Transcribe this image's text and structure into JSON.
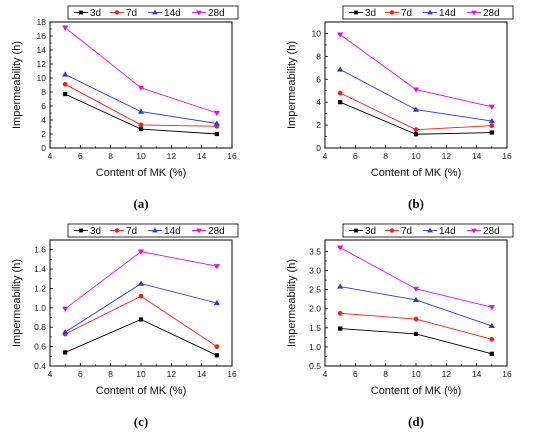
{
  "chart_data": [
    {
      "type": "line",
      "caption": "(a)",
      "xlabel": "Content of MK (%)",
      "ylabel": "Impermeability (h)",
      "xlim": [
        4,
        16
      ],
      "ylim": [
        0,
        18
      ],
      "xticks": [
        "4",
        "6",
        "8",
        "10",
        "12",
        "14",
        "16"
      ],
      "yticks": [
        "0",
        "2",
        "4",
        "6",
        "8",
        "10",
        "12",
        "14",
        "16",
        "18"
      ],
      "x": [
        5,
        10,
        15
      ],
      "legend_position": "top",
      "series": [
        {
          "name": "3d",
          "color": "#000000",
          "marker": "square",
          "values": [
            7.7,
            2.7,
            2.0
          ]
        },
        {
          "name": "7d",
          "color": "#e8251a",
          "marker": "circle",
          "values": [
            9.1,
            3.3,
            3.1
          ]
        },
        {
          "name": "14d",
          "color": "#2b3bd8",
          "marker": "triangle-up",
          "values": [
            10.5,
            5.2,
            3.5
          ]
        },
        {
          "name": "28d",
          "color": "#e010e0",
          "marker": "triangle-down",
          "values": [
            17.2,
            8.6,
            5.0
          ]
        }
      ]
    },
    {
      "type": "line",
      "caption": "(b)",
      "xlabel": "Content of MK (%)",
      "ylabel": "Impermeability (h)",
      "xlim": [
        4,
        16
      ],
      "ylim": [
        0,
        11
      ],
      "xticks": [
        "4",
        "6",
        "8",
        "10",
        "12",
        "14",
        "16"
      ],
      "yticks": [
        "0",
        "2",
        "4",
        "6",
        "8",
        "10"
      ],
      "x": [
        5,
        10,
        15
      ],
      "legend_position": "top",
      "series": [
        {
          "name": "3d",
          "color": "#000000",
          "marker": "square",
          "values": [
            4.0,
            1.2,
            1.35
          ]
        },
        {
          "name": "7d",
          "color": "#e8251a",
          "marker": "circle",
          "values": [
            4.8,
            1.6,
            1.95
          ]
        },
        {
          "name": "14d",
          "color": "#2b3bd8",
          "marker": "triangle-up",
          "values": [
            6.85,
            3.35,
            2.35
          ]
        },
        {
          "name": "28d",
          "color": "#e010e0",
          "marker": "triangle-down",
          "values": [
            9.9,
            5.1,
            3.6
          ]
        }
      ]
    },
    {
      "type": "line",
      "caption": "(c)",
      "xlabel": "Content of MK (%)",
      "ylabel": "Impermeability (h)",
      "xlim": [
        4,
        16
      ],
      "ylim": [
        0.4,
        1.7
      ],
      "xticks": [
        "4",
        "6",
        "8",
        "10",
        "12",
        "14",
        "16"
      ],
      "yticks": [
        "0.4",
        "0.6",
        "0.8",
        "1.0",
        "1.2",
        "1.4",
        "1.6"
      ],
      "x": [
        5,
        10,
        15
      ],
      "legend_position": "top",
      "series": [
        {
          "name": "3d",
          "color": "#000000",
          "marker": "square",
          "values": [
            0.54,
            0.88,
            0.51
          ]
        },
        {
          "name": "7d",
          "color": "#e8251a",
          "marker": "circle",
          "values": [
            0.73,
            1.12,
            0.6
          ]
        },
        {
          "name": "14d",
          "color": "#2b3bd8",
          "marker": "triangle-up",
          "values": [
            0.75,
            1.25,
            1.05
          ]
        },
        {
          "name": "28d",
          "color": "#e010e0",
          "marker": "triangle-down",
          "values": [
            0.99,
            1.58,
            1.43
          ]
        }
      ]
    },
    {
      "type": "line",
      "caption": "(d)",
      "xlabel": "Content of MK (%)",
      "ylabel": "Impermeability (h)",
      "xlim": [
        4,
        16
      ],
      "ylim": [
        0.5,
        3.8
      ],
      "xticks": [
        "4",
        "6",
        "8",
        "10",
        "12",
        "14",
        "16"
      ],
      "yticks": [
        "0.5",
        "1.0",
        "1.5",
        "2.0",
        "2.5",
        "3.0",
        "3.5"
      ],
      "x": [
        5,
        10,
        15
      ],
      "legend_position": "top",
      "series": [
        {
          "name": "3d",
          "color": "#000000",
          "marker": "square",
          "values": [
            1.48,
            1.34,
            0.82
          ]
        },
        {
          "name": "7d",
          "color": "#e8251a",
          "marker": "circle",
          "values": [
            1.88,
            1.73,
            1.2
          ]
        },
        {
          "name": "14d",
          "color": "#2b3bd8",
          "marker": "triangle-up",
          "values": [
            2.58,
            2.23,
            1.55
          ]
        },
        {
          "name": "28d",
          "color": "#e010e0",
          "marker": "triangle-down",
          "values": [
            3.6,
            2.52,
            2.04
          ]
        }
      ]
    }
  ]
}
